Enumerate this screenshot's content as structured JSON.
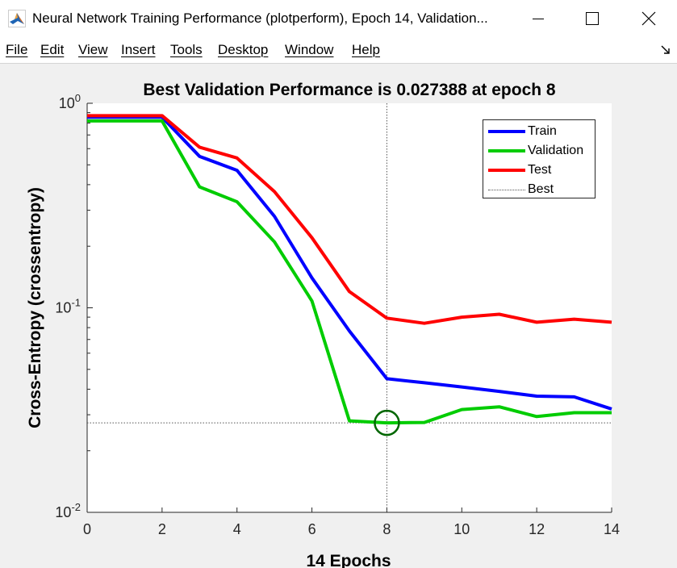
{
  "window": {
    "title": "Neural Network Training Performance (plotperform), Epoch 14, Validation...",
    "minimize_glyph": "minimize",
    "maximize_glyph": "maximize",
    "close_glyph": "close"
  },
  "menu": {
    "items": [
      {
        "label": "File"
      },
      {
        "label": "Edit"
      },
      {
        "label": "View"
      },
      {
        "label": "Insert"
      },
      {
        "label": "Tools"
      },
      {
        "label": "Desktop"
      },
      {
        "label": "Window"
      },
      {
        "label": "Help"
      }
    ]
  },
  "colors": {
    "train": "#0000ff",
    "validation": "#00cc00",
    "test": "#ff0000",
    "best": "#555555",
    "best_marker": "#006600"
  },
  "chart_data": {
    "type": "line",
    "title": "Best Validation Performance is 0.027388 at epoch 8",
    "xlabel": "14 Epochs",
    "ylabel": "Cross-Entropy  (crossentropy)",
    "xlim": [
      0,
      14
    ],
    "ylim": [
      0.01,
      1
    ],
    "yscale": "log",
    "xticks": [
      "0",
      "2",
      "4",
      "6",
      "8",
      "10",
      "12",
      "14"
    ],
    "yticks": [
      {
        "base": "10",
        "exp": "0"
      },
      {
        "base": "10",
        "exp": "-1"
      },
      {
        "base": "10",
        "exp": "-2"
      }
    ],
    "x": [
      0,
      1,
      2,
      3,
      4,
      5,
      6,
      7,
      8,
      9,
      10,
      11,
      12,
      13,
      14
    ],
    "series": [
      {
        "name": "Train",
        "color": "#0000ff",
        "values": [
          0.855,
          0.855,
          0.855,
          0.55,
          0.47,
          0.28,
          0.14,
          0.077,
          0.045,
          0.043,
          0.041,
          0.039,
          0.037,
          0.0367,
          0.032
        ]
      },
      {
        "name": "Validation",
        "color": "#00cc00",
        "values": [
          0.82,
          0.82,
          0.82,
          0.39,
          0.33,
          0.21,
          0.108,
          0.028,
          0.027388,
          0.0275,
          0.0318,
          0.0328,
          0.0294,
          0.0307,
          0.0307
        ]
      },
      {
        "name": "Test",
        "color": "#ff0000",
        "values": [
          0.87,
          0.87,
          0.87,
          0.61,
          0.54,
          0.37,
          0.22,
          0.12,
          0.089,
          0.084,
          0.09,
          0.093,
          0.085,
          0.088,
          0.085
        ]
      }
    ],
    "best": {
      "name": "Best",
      "epoch": 8,
      "value": 0.027388
    },
    "legend_position": "top-right",
    "grid": false
  }
}
